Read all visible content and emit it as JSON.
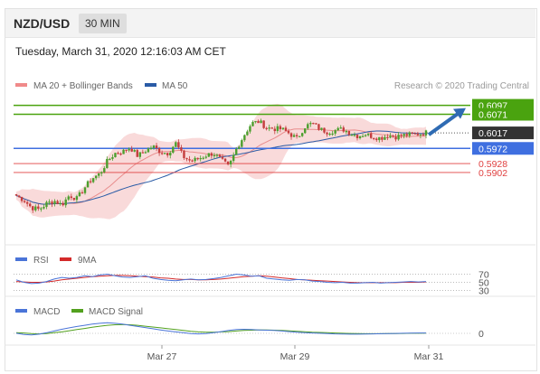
{
  "header": {
    "pair": "NZD/USD",
    "timeframe": "30 MIN",
    "date": "Tuesday, March 31, 2020 12:16:03 AM CET"
  },
  "legend": {
    "ma20": "MA 20 + Bollinger Bands",
    "ma50": "MA 50",
    "credit": "Research © 2020 Trading Central"
  },
  "colors": {
    "green": "#4aa30f",
    "blue_level": "#3f6fe0",
    "red_level": "#e04040",
    "candle_up": "#4c9f2e",
    "candle_down": "#c43d3d",
    "bollinger": "#f6caca",
    "ma20": "#e88c8c",
    "ma50": "#2a5ba6",
    "rsi": "#4a74d8",
    "rsi_ma": "#d42a2a",
    "macd": "#4a74d8",
    "macd_signal": "#52a01e",
    "arrow": "#2f6bb3",
    "last_price_bg": "#333333"
  },
  "chart_data": [
    {
      "type": "candlestick",
      "title": "",
      "series_names": [
        "MA 20 + Bollinger Bands",
        "MA 50"
      ],
      "ylim": [
        0.57,
        0.613
      ],
      "levels": [
        {
          "value": 0.6097,
          "label": "0.6097",
          "kind": "resistance"
        },
        {
          "value": 0.6071,
          "label": "0.6071",
          "kind": "resistance"
        },
        {
          "value": 0.5972,
          "label": "0.5972",
          "kind": "pivot"
        },
        {
          "value": 0.5928,
          "label": "0.5928",
          "kind": "support"
        },
        {
          "value": 0.5902,
          "label": "0.5902",
          "kind": "support"
        }
      ],
      "last_price": {
        "value": 0.6017,
        "label": "0.6017"
      },
      "x_ticks": [
        "Mar 27",
        "Mar 29",
        "Mar 31"
      ],
      "close_path": [
        0.5835,
        0.5822,
        0.58,
        0.5795,
        0.5812,
        0.582,
        0.5808,
        0.5836,
        0.5826,
        0.5858,
        0.5885,
        0.5898,
        0.5935,
        0.5958,
        0.5962,
        0.5975,
        0.595,
        0.5965,
        0.5978,
        0.5962,
        0.5958,
        0.5988,
        0.5948,
        0.5935,
        0.5942,
        0.5952,
        0.5958,
        0.5938,
        0.5918,
        0.597,
        0.601,
        0.6045,
        0.605,
        0.6032,
        0.6029,
        0.6028,
        0.6015,
        0.6,
        0.6035,
        0.6045,
        0.6028,
        0.602,
        0.6024,
        0.6028,
        0.6017,
        0.6008,
        0.6014,
        0.6006,
        0.6002,
        0.601,
        0.6006,
        0.601,
        0.6012,
        0.6014,
        0.6018
      ],
      "projection": {
        "from": 0.6017,
        "to": 0.6097
      }
    },
    {
      "type": "line",
      "title": "",
      "series_names": [
        "RSI",
        "9MA"
      ],
      "y_ticks": [
        "70",
        "50",
        "30"
      ],
      "ylim": [
        20,
        80
      ],
      "levels": [
        70,
        50,
        30
      ],
      "rsi": [
        56,
        50,
        47,
        48,
        52,
        58,
        62,
        60,
        62,
        66,
        64,
        68,
        70,
        66,
        63,
        62,
        64,
        66,
        60,
        57,
        55,
        54,
        56,
        58,
        56,
        57,
        59,
        62,
        66,
        70,
        68,
        65,
        66,
        60,
        58,
        56,
        55,
        57,
        56,
        53,
        52,
        50,
        49,
        50,
        48,
        48,
        49,
        50,
        48,
        49,
        50,
        51,
        52,
        51,
        52
      ],
      "rsi_ma": [
        52,
        51,
        50,
        50,
        51,
        53,
        56,
        58,
        60,
        62,
        64,
        65,
        66,
        67,
        67,
        66,
        65,
        64,
        63,
        61,
        60,
        58,
        57,
        57,
        56,
        56,
        57,
        58,
        60,
        62,
        64,
        65,
        66,
        65,
        63,
        61,
        59,
        57,
        56,
        55,
        54,
        53,
        52,
        51,
        50,
        49,
        49,
        49,
        49,
        49,
        49,
        50,
        50,
        50,
        51
      ]
    },
    {
      "type": "line",
      "title": "",
      "series_names": [
        "MACD",
        "MACD Signal"
      ],
      "y_ticks": [
        "0"
      ],
      "ylim": [
        -7,
        12
      ],
      "levels": [
        0
      ],
      "macd": [
        0.0,
        -0.8,
        -1.2,
        -0.6,
        0.4,
        1.6,
        2.8,
        3.8,
        4.8,
        5.6,
        6.4,
        7.0,
        7.4,
        7.0,
        6.4,
        5.6,
        4.8,
        4.0,
        3.2,
        2.4,
        1.6,
        1.0,
        0.4,
        -0.2,
        -0.4,
        -0.2,
        0.4,
        1.2,
        2.0,
        2.6,
        2.8,
        2.6,
        2.4,
        2.2,
        2.0,
        1.6,
        1.2,
        0.8,
        0.4,
        0.2,
        0.0,
        -0.2,
        -0.4,
        -0.5,
        -0.6,
        -0.6,
        -0.5,
        -0.4,
        -0.3,
        -0.2,
        -0.1,
        0.0,
        0.1,
        0.2,
        0.2
      ],
      "signal": [
        0.4,
        0.2,
        -0.2,
        -0.4,
        -0.2,
        0.4,
        1.0,
        1.8,
        2.6,
        3.4,
        4.2,
        5.0,
        5.6,
        6.0,
        6.2,
        6.0,
        5.6,
        5.0,
        4.4,
        3.8,
        3.2,
        2.6,
        2.0,
        1.4,
        1.0,
        0.8,
        0.8,
        1.0,
        1.2,
        1.6,
        2.0,
        2.2,
        2.3,
        2.3,
        2.2,
        2.0,
        1.7,
        1.4,
        1.1,
        0.8,
        0.6,
        0.4,
        0.2,
        0.0,
        -0.1,
        -0.2,
        -0.3,
        -0.3,
        -0.3,
        -0.2,
        -0.2,
        -0.1,
        0.0,
        0.0,
        0.1
      ]
    }
  ]
}
